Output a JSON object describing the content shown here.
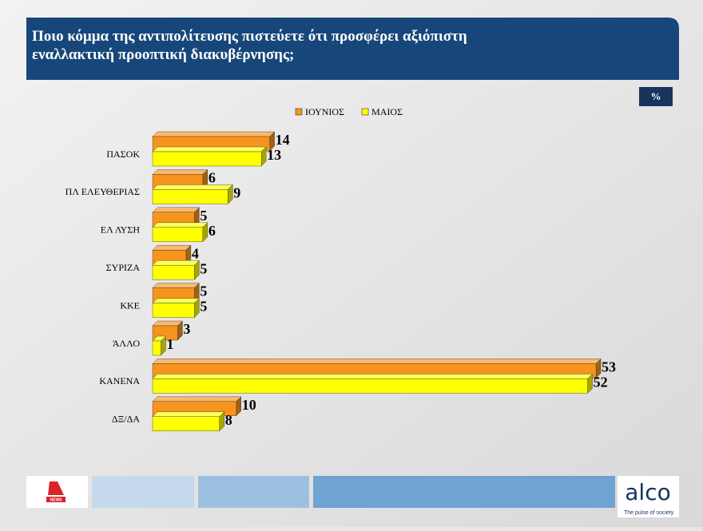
{
  "chart_data": {
    "type": "bar3d",
    "orientation": "horizontal",
    "title": "Ποιο κόμμα της αντιπολίτευσης πιστεύετε ότι προσφέρει αξιόπιστη εναλλακτική προοπτική διακυβέρνησης;",
    "unit": "%",
    "categories": [
      "ΠΑΣΟΚ",
      "ΠΛ ΕΛΕΥΘΕΡΙΑΣ",
      "ΕΛ ΛΥΣΗ",
      "ΣΥΡΙΖΑ",
      "ΚΚΕ",
      "ΆΛΛΟ",
      "ΚΑΝΕΝΑ",
      "ΔΞ/ΔΑ"
    ],
    "series": [
      {
        "name": "ΙΟΥΝΙΟΣ",
        "color": "#f7941d",
        "values": [
          14,
          6,
          5,
          4,
          5,
          3,
          53,
          10
        ]
      },
      {
        "name": "ΜΑΙΟΣ",
        "color": "#ffff00",
        "values": [
          13,
          9,
          6,
          5,
          5,
          1,
          52,
          8
        ]
      }
    ],
    "xlim": [
      0,
      55
    ],
    "legend": "top"
  },
  "footer": {
    "left_logo": "NEWS",
    "brand": "alco",
    "tagline": "The pulse of society"
  }
}
